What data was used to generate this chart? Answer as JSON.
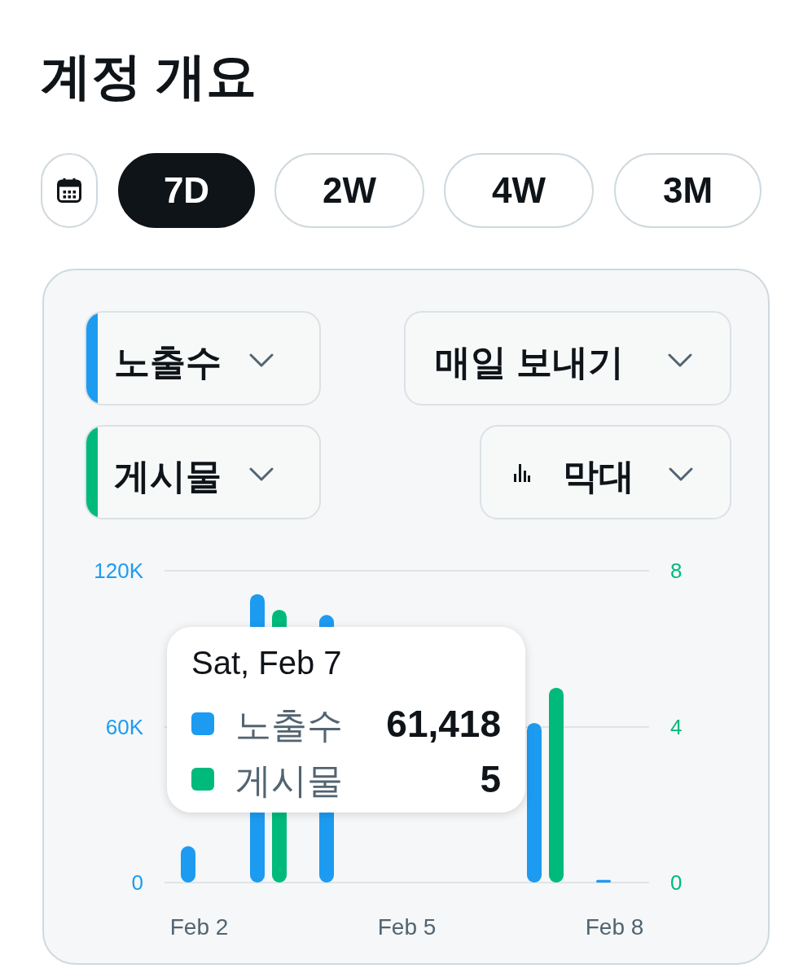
{
  "chart_data": {
    "type": "bar",
    "title": "계정 개요",
    "categories": [
      "Feb 2",
      null,
      null,
      "Feb 5",
      null,
      null,
      "Feb 8"
    ],
    "series": [
      {
        "name": "노출수",
        "color": "#1d9bf0",
        "values": [
          14000,
          111000,
          103000,
          null,
          null,
          61418,
          1000
        ]
      },
      {
        "name": "게시물",
        "color": "#00ba7c",
        "axis": "y2",
        "values": [
          null,
          7,
          null,
          null,
          null,
          5,
          0
        ]
      }
    ],
    "ylim": [
      0,
      120000
    ],
    "yticks": [
      0,
      {
        "value": 60000,
        "label": "60K"
      },
      {
        "value": 120000,
        "label": "120K"
      }
    ],
    "y2lim": [
      0,
      8
    ],
    "y2ticks": [
      0,
      4,
      8
    ],
    "grid": "y",
    "legend": "bottom left",
    "annotations": [
      "7D",
      "2W",
      "4W",
      "3M",
      "매일 보내기",
      "막대",
      "Sat, Feb 7",
      "61,418",
      "5",
      "노출수",
      "게시물"
    ]
  }
}
